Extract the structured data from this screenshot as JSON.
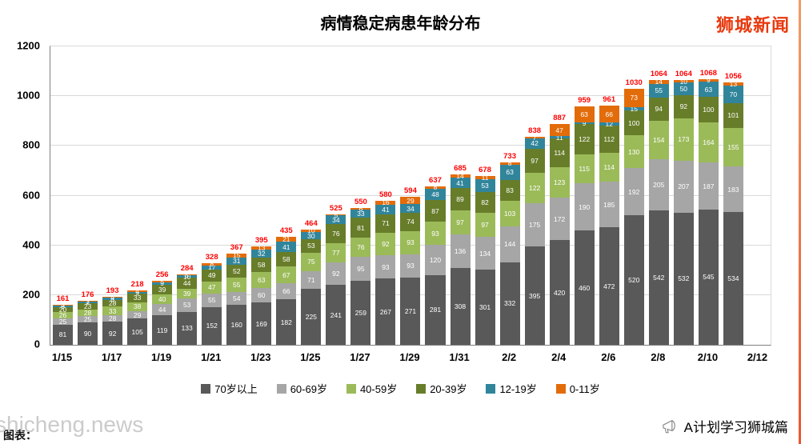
{
  "header": {
    "title": "病情稳定病患年龄分布",
    "logo": "狮城新闻"
  },
  "footer": {
    "watermark": "shicheng.news",
    "caption": "图表：",
    "branding": "A计划学习狮城篇"
  },
  "colors": {
    "total_label": "#ff0000",
    "grid": "#d9d9d9",
    "logo": "#e8390e"
  },
  "chart_data": {
    "type": "bar",
    "stacked": true,
    "title": "病情稳定病患年龄分布",
    "xlabel": "",
    "ylabel": "",
    "ylim": [
      0,
      1200
    ],
    "yticks": [
      0,
      200,
      400,
      600,
      800,
      1000,
      1200
    ],
    "grid": true,
    "legend_position": "bottom",
    "x": [
      "1/15",
      "1/16",
      "1/17",
      "1/18",
      "1/19",
      "1/20",
      "1/21",
      "1/22",
      "1/23",
      "1/24",
      "1/25",
      "1/26",
      "1/27",
      "1/28",
      "1/29",
      "1/30",
      "1/31",
      "2/1",
      "2/2",
      "2/3",
      "2/4",
      "2/5",
      "2/6",
      "2/7",
      "2/8",
      "2/9",
      "2/10",
      "2/11"
    ],
    "extra_tick": "2/12",
    "tick_every": 2,
    "totals": [
      161,
      176,
      193,
      218,
      256,
      284,
      328,
      367,
      395,
      435,
      464,
      525,
      550,
      580,
      594,
      637,
      685,
      678,
      733,
      838,
      887,
      959,
      961,
      1030,
      1064,
      1064,
      1068,
      1056
    ],
    "series": [
      {
        "name": "70岁以上",
        "color": "#595959",
        "values": [
          81,
          90,
          92,
          105,
          119,
          133,
          152,
          160,
          169,
          182,
          225,
          241,
          259,
          267,
          271,
          281,
          308,
          301,
          332,
          395,
          420,
          460,
          472,
          520,
          542,
          532,
          545,
          534
        ]
      },
      {
        "name": "60-69岁",
        "color": "#a6a6a6",
        "values": [
          25,
          25,
          28,
          29,
          44,
          53,
          55,
          54,
          60,
          66,
          71,
          92,
          95,
          93,
          93,
          120,
          136,
          134,
          144,
          175,
          172,
          190,
          185,
          192,
          205,
          207,
          187,
          183
        ]
      },
      {
        "name": "40-59岁",
        "color": "#9bbb59",
        "values": [
          26,
          28,
          33,
          38,
          40,
          39,
          47,
          55,
          63,
          67,
          75,
          77,
          76,
          92,
          93,
          93,
          97,
          97,
          103,
          122,
          123,
          115,
          114,
          130,
          154,
          173,
          164,
          155
        ]
      },
      {
        "name": "20-39岁",
        "color": "#687d2a",
        "values": [
          20,
          23,
          28,
          33,
          39,
          44,
          49,
          52,
          58,
          58,
          53,
          76,
          81,
          71,
          74,
          87,
          89,
          82,
          83,
          97,
          114,
          122,
          112,
          100,
          94,
          92,
          100,
          101
        ]
      },
      {
        "name": "12-19岁",
        "color": "#31859b",
        "values": [
          6,
          7,
          8,
          9,
          9,
          10,
          17,
          31,
          32,
          41,
          30,
          34,
          33,
          41,
          34,
          48,
          41,
          53,
          63,
          42,
          11,
          9,
          12,
          15,
          55,
          50,
          63,
          70
        ]
      },
      {
        "name": "0-11岁",
        "color": "#e36c0a",
        "values": [
          3,
          3,
          4,
          4,
          5,
          5,
          8,
          15,
          13,
          21,
          10,
          5,
          6,
          16,
          29,
          8,
          14,
          11,
          8,
          7,
          47,
          63,
          66,
          73,
          14,
          10,
          9,
          13
        ]
      }
    ]
  }
}
